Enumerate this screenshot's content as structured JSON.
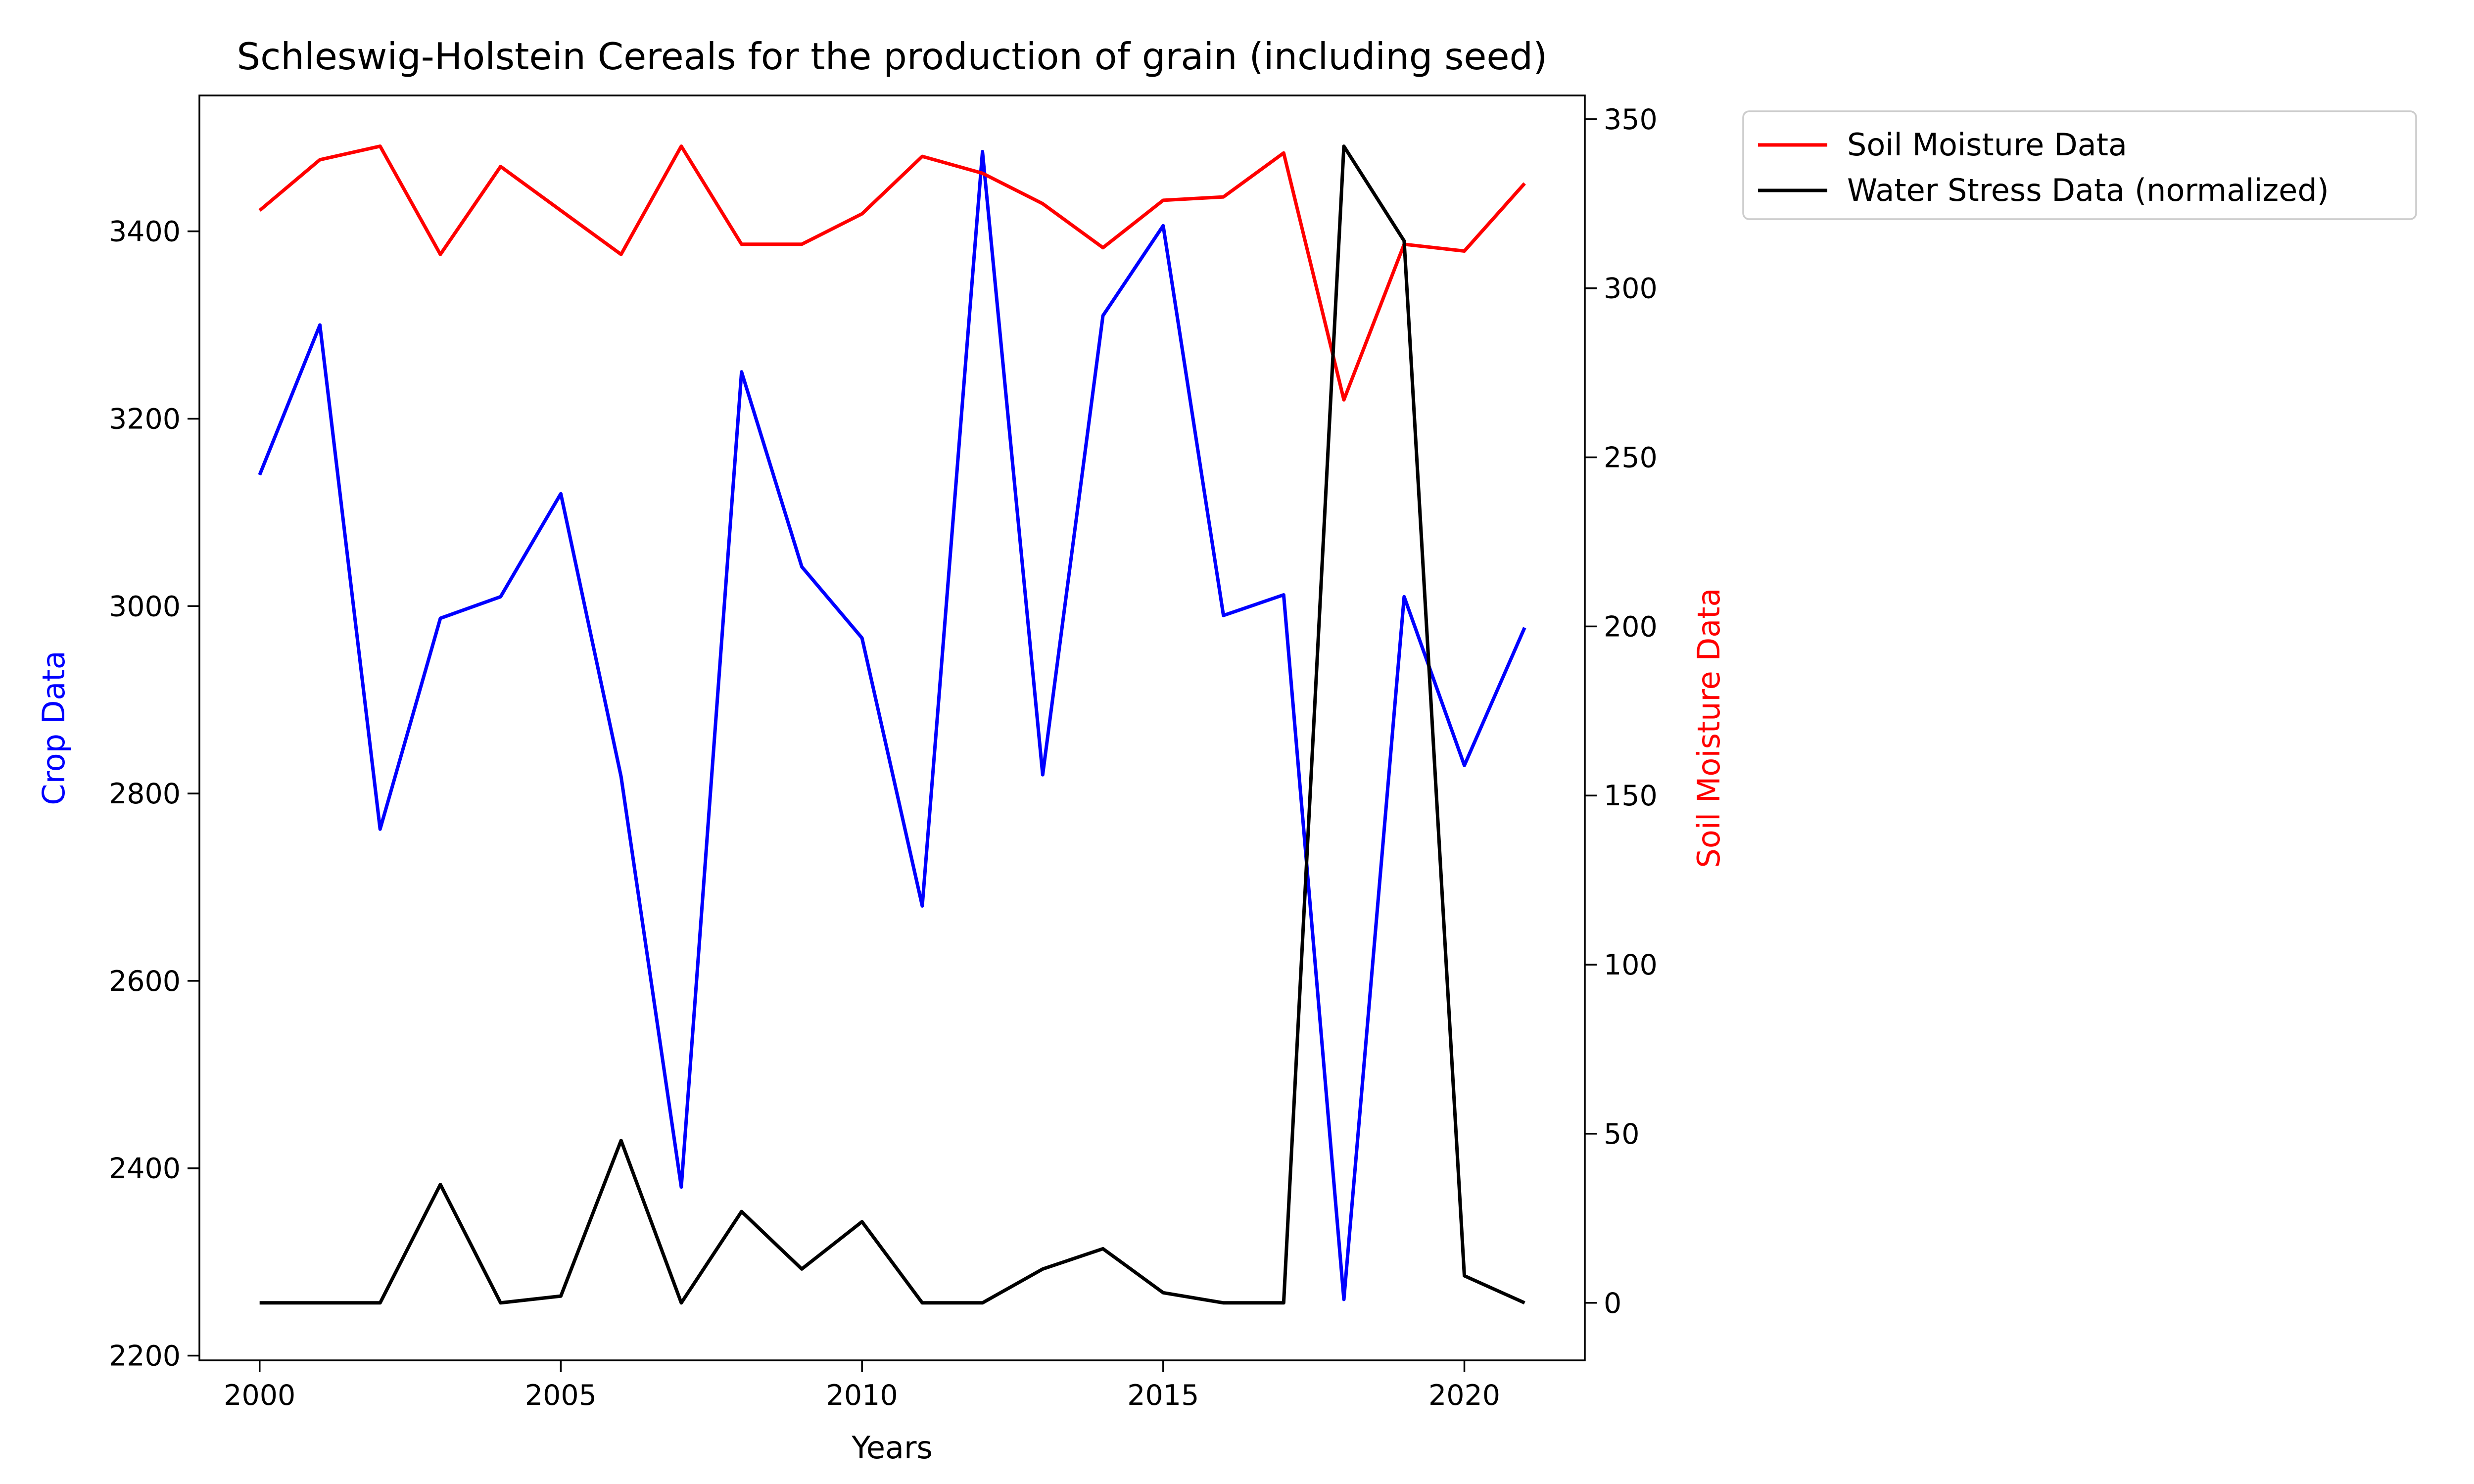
{
  "chart_data": {
    "type": "line",
    "title": "Schleswig-Holstein Cereals for the production of grain (including seed)",
    "xlabel": "Years",
    "ylabel_left": "Crop Data",
    "ylabel_right": "Soil Moisture Data",
    "x": [
      2000,
      2001,
      2002,
      2003,
      2004,
      2005,
      2006,
      2007,
      2008,
      2009,
      2010,
      2011,
      2012,
      2013,
      2014,
      2015,
      2016,
      2017,
      2018,
      2019,
      2020,
      2021
    ],
    "xlim": [
      1999,
      2022
    ],
    "xticks": [
      2000,
      2005,
      2010,
      2015,
      2020
    ],
    "ylim_left": [
      2195,
      3545
    ],
    "yticks_left": [
      2200,
      2400,
      2600,
      2800,
      3000,
      3200,
      3400
    ],
    "ylim_right": [
      -17,
      357
    ],
    "yticks_right": [
      0,
      50,
      100,
      150,
      200,
      250,
      300,
      350
    ],
    "grid": false,
    "legend_placement": "outside-right-top",
    "series": [
      {
        "name": "Crop Data",
        "axis": "left",
        "color": "#0000ff",
        "in_legend": false,
        "values": [
          3140,
          3300,
          2762,
          2987,
          3010,
          3120,
          2818,
          2380,
          3250,
          3042,
          2966,
          2680,
          3485,
          2820,
          3310,
          3406,
          2990,
          3012,
          2260,
          3010,
          2830,
          2977
        ]
      },
      {
        "name": "Soil Moisture Data",
        "axis": "right",
        "color": "#ff0000",
        "in_legend": true,
        "values": [
          323,
          338,
          342,
          310,
          336,
          323,
          310,
          342,
          313,
          313,
          322,
          339,
          334,
          325,
          312,
          326,
          327,
          340,
          267,
          313,
          311,
          331
        ]
      },
      {
        "name": "Water Stress Data (normalized)",
        "axis": "right",
        "color": "#000000",
        "in_legend": true,
        "values": [
          0,
          0,
          0,
          35,
          0,
          2,
          48,
          0,
          27,
          10,
          24,
          0,
          0,
          10,
          16,
          3,
          0,
          0,
          342,
          314,
          8,
          0
        ]
      }
    ]
  }
}
